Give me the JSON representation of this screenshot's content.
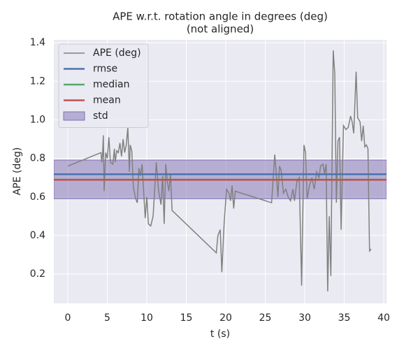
{
  "chart_data": {
    "type": "line",
    "title": "APE w.r.t. rotation angle in degrees (deg)",
    "subtitle": "(not aligned)",
    "xlabel": "t (s)",
    "ylabel": "APE (deg)",
    "xlim": [
      -1.77,
      40.35
    ],
    "ylim": [
      0.048,
      1.415
    ],
    "xticks": [
      0,
      5,
      10,
      15,
      20,
      25,
      30,
      35,
      40
    ],
    "yticks": [
      0.2,
      0.4,
      0.6,
      0.8,
      {
        "value": 1,
        "label": "1.0"
      },
      1.2,
      1.4
    ],
    "grid": true,
    "legend": "upper left",
    "x": [
      0,
      4.2,
      4.3,
      4.4,
      4.5,
      4.6,
      4.8,
      5.0,
      5.2,
      5.4,
      5.7,
      5.9,
      6.0,
      6.2,
      6.4,
      6.6,
      6.8,
      7.0,
      7.2,
      7.4,
      7.6,
      7.8,
      7.9,
      8.1,
      8.3,
      8.6,
      8.8,
      9.0,
      9.2,
      9.4,
      9.6,
      9.8,
      10.0,
      10.2,
      10.5,
      10.8,
      11.2,
      11.5,
      11.8,
      12.0,
      12.2,
      12.4,
      12.6,
      12.8,
      13.0,
      13.2,
      18.8,
      19.0,
      19.3,
      19.5,
      19.8,
      20.1,
      20.4,
      20.6,
      20.8,
      21.0,
      21.2,
      25.8,
      26.2,
      26.4,
      26.6,
      26.8,
      27.0,
      27.3,
      27.6,
      27.9,
      28.2,
      28.5,
      28.7,
      29.0,
      29.3,
      29.6,
      29.9,
      30.1,
      30.3,
      30.6,
      30.9,
      31.2,
      31.5,
      31.8,
      32.0,
      32.3,
      32.5,
      32.7,
      32.9,
      33.1,
      33.3,
      33.6,
      33.8,
      34.0,
      34.2,
      34.4,
      34.6,
      34.9,
      35.2,
      35.5,
      35.8,
      36.0,
      36.2,
      36.5,
      36.7,
      37.0,
      37.2,
      37.4,
      37.6,
      37.8,
      38.0,
      38.2,
      38.4
    ],
    "series": [
      {
        "name": "APE (deg)",
        "color": "#808080",
        "values": [
          0.76,
          0.83,
          0.78,
          0.82,
          0.92,
          0.63,
          0.83,
          0.8,
          0.91,
          0.78,
          0.77,
          0.85,
          0.78,
          0.84,
          0.83,
          0.88,
          0.81,
          0.9,
          0.83,
          0.87,
          0.96,
          0.73,
          0.87,
          0.84,
          0.65,
          0.59,
          0.57,
          0.75,
          0.71,
          0.77,
          0.63,
          0.49,
          0.6,
          0.46,
          0.45,
          0.5,
          0.78,
          0.63,
          0.56,
          0.71,
          0.46,
          0.77,
          0.68,
          0.63,
          0.72,
          0.53,
          0.31,
          0.4,
          0.43,
          0.21,
          0.47,
          0.64,
          0.62,
          0.58,
          0.66,
          0.54,
          0.63,
          0.57,
          0.82,
          0.72,
          0.6,
          0.76,
          0.74,
          0.62,
          0.64,
          0.6,
          0.58,
          0.64,
          0.58,
          0.68,
          0.7,
          0.14,
          0.87,
          0.83,
          0.59,
          0.66,
          0.7,
          0.64,
          0.73,
          0.7,
          0.76,
          0.77,
          0.72,
          0.77,
          0.11,
          0.5,
          0.19,
          1.36,
          1.24,
          0.57,
          0.89,
          0.91,
          0.43,
          0.97,
          0.95,
          0.96,
          1.02,
          0.99,
          0.93,
          1.25,
          1.01,
          0.99,
          0.89,
          0.97,
          0.86,
          0.87,
          0.85,
          0.32,
          0.33
        ]
      }
    ],
    "hlines": [
      {
        "name": "rmse",
        "color": "#4c72b0",
        "value": 0.718
      },
      {
        "name": "median",
        "color": "#55a868",
        "value": 0.69
      },
      {
        "name": "mean",
        "color": "#c44e52",
        "value": 0.689
      }
    ],
    "band": {
      "name": "std",
      "color": "#8172b2",
      "values": [
        0.591,
        0.791
      ]
    }
  }
}
